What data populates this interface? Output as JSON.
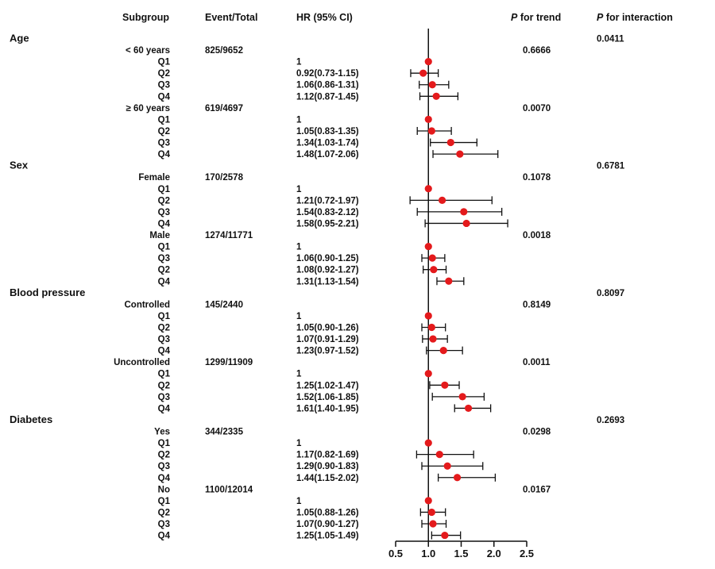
{
  "chart_data": {
    "type": "forest",
    "headers": {
      "subgroup": "Subgroup",
      "event_total": "Event/Total",
      "hr": "HR (95% CI)",
      "p_trend_p": "P",
      "p_trend_rest": " for trend",
      "p_inter_p": "P",
      "p_inter_rest": " for interaction"
    },
    "x_ticks": [
      "0.5",
      "1.0",
      "1.5",
      "2.0",
      "2.5"
    ],
    "xlim": [
      0.5,
      2.5
    ],
    "reference_line": 1.0,
    "marker_color": "#e41a1c",
    "rows": [
      {
        "label": "Age",
        "level": 0,
        "p_interaction": "0.0411"
      },
      {
        "label": "< 60 years",
        "level": 1,
        "event_total": "825/9652",
        "p_trend": "0.6666"
      },
      {
        "label": "Q1",
        "level": 2,
        "hr_text": "1",
        "hr": 1.0,
        "lo": 1.0,
        "hi": 1.0
      },
      {
        "label": "Q2",
        "level": 2,
        "hr_text": "0.92(0.73-1.15)",
        "hr": 0.92,
        "lo": 0.73,
        "hi": 1.15
      },
      {
        "label": "Q3",
        "level": 2,
        "hr_text": "1.06(0.86-1.31)",
        "hr": 1.06,
        "lo": 0.86,
        "hi": 1.31
      },
      {
        "label": "Q4",
        "level": 2,
        "hr_text": "1.12(0.87-1.45)",
        "hr": 1.12,
        "lo": 0.87,
        "hi": 1.45
      },
      {
        "label": "≥ 60 years",
        "level": 1,
        "event_total": "619/4697",
        "p_trend": "0.0070"
      },
      {
        "label": "Q1",
        "level": 2,
        "hr_text": "1",
        "hr": 1.0,
        "lo": 1.0,
        "hi": 1.0
      },
      {
        "label": "Q2",
        "level": 2,
        "hr_text": "1.05(0.83-1.35)",
        "hr": 1.05,
        "lo": 0.83,
        "hi": 1.35
      },
      {
        "label": "Q3",
        "level": 2,
        "hr_text": "1.34(1.03-1.74)",
        "hr": 1.34,
        "lo": 1.03,
        "hi": 1.74
      },
      {
        "label": "Q4",
        "level": 2,
        "hr_text": "1.48(1.07-2.06)",
        "hr": 1.48,
        "lo": 1.07,
        "hi": 2.06
      },
      {
        "label": "Sex",
        "level": 0,
        "p_interaction": "0.6781"
      },
      {
        "label": "Female",
        "level": 1,
        "event_total": "170/2578",
        "p_trend": "0.1078"
      },
      {
        "label": "Q1",
        "level": 2,
        "hr_text": "1",
        "hr": 1.0,
        "lo": 1.0,
        "hi": 1.0
      },
      {
        "label": "Q2",
        "level": 2,
        "hr_text": "1.21(0.72-1.97)",
        "hr": 1.21,
        "lo": 0.72,
        "hi": 1.97
      },
      {
        "label": "Q3",
        "level": 2,
        "hr_text": "1.54(0.83-2.12)",
        "hr": 1.54,
        "lo": 0.83,
        "hi": 2.12
      },
      {
        "label": "Q4",
        "level": 2,
        "hr_text": "1.58(0.95-2.21)",
        "hr": 1.58,
        "lo": 0.95,
        "hi": 2.21
      },
      {
        "label": "Male",
        "level": 1,
        "event_total": "1274/11771",
        "p_trend": "0.0018"
      },
      {
        "label": "Q1",
        "level": 2,
        "hr_text": "1",
        "hr": 1.0,
        "lo": 1.0,
        "hi": 1.0
      },
      {
        "label": "Q3",
        "level": 2,
        "hr_text": "1.06(0.90-1.25)",
        "hr": 1.06,
        "lo": 0.9,
        "hi": 1.25
      },
      {
        "label": "Q2",
        "level": 2,
        "hr_text": "1.08(0.92-1.27)",
        "hr": 1.08,
        "lo": 0.92,
        "hi": 1.27
      },
      {
        "label": "Q4",
        "level": 2,
        "hr_text": "1.31(1.13-1.54)",
        "hr": 1.31,
        "lo": 1.13,
        "hi": 1.54
      },
      {
        "label": "Blood pressure",
        "level": 0,
        "p_interaction": "0.8097"
      },
      {
        "label": "Controlled",
        "level": 1,
        "event_total": "145/2440",
        "p_trend": "0.8149"
      },
      {
        "label": "Q1",
        "level": 2,
        "hr_text": "1",
        "hr": 1.0,
        "lo": 1.0,
        "hi": 1.0
      },
      {
        "label": "Q2",
        "level": 2,
        "hr_text": "1.05(0.90-1.26)",
        "hr": 1.05,
        "lo": 0.9,
        "hi": 1.26
      },
      {
        "label": "Q3",
        "level": 2,
        "hr_text": "1.07(0.91-1.29)",
        "hr": 1.07,
        "lo": 0.91,
        "hi": 1.29
      },
      {
        "label": "Q4",
        "level": 2,
        "hr_text": "1.23(0.97-1.52)",
        "hr": 1.23,
        "lo": 0.97,
        "hi": 1.52
      },
      {
        "label": "Uncontrolled",
        "level": 1,
        "event_total": "1299/11909",
        "p_trend": "0.0011"
      },
      {
        "label": "Q1",
        "level": 2,
        "hr_text": "1",
        "hr": 1.0,
        "lo": 1.0,
        "hi": 1.0
      },
      {
        "label": "Q2",
        "level": 2,
        "hr_text": "1.25(1.02-1.47)",
        "hr": 1.25,
        "lo": 1.02,
        "hi": 1.47
      },
      {
        "label": "Q3",
        "level": 2,
        "hr_text": "1.52(1.06-1.85)",
        "hr": 1.52,
        "lo": 1.06,
        "hi": 1.85
      },
      {
        "label": "Q4",
        "level": 2,
        "hr_text": "1.61(1.40-1.95)",
        "hr": 1.61,
        "lo": 1.4,
        "hi": 1.95
      },
      {
        "label": "Diabetes",
        "level": 0,
        "p_interaction": "0.2693"
      },
      {
        "label": "Yes",
        "level": 1,
        "event_total": "344/2335",
        "p_trend": "0.0298"
      },
      {
        "label": "Q1",
        "level": 2,
        "hr_text": "1",
        "hr": 1.0,
        "lo": 1.0,
        "hi": 1.0
      },
      {
        "label": "Q2",
        "level": 2,
        "hr_text": "1.17(0.82-1.69)",
        "hr": 1.17,
        "lo": 0.82,
        "hi": 1.69
      },
      {
        "label": "Q3",
        "level": 2,
        "hr_text": "1.29(0.90-1.83)",
        "hr": 1.29,
        "lo": 0.9,
        "hi": 1.83
      },
      {
        "label": "Q4",
        "level": 2,
        "hr_text": "1.44(1.15-2.02)",
        "hr": 1.44,
        "lo": 1.15,
        "hi": 2.02
      },
      {
        "label": "No",
        "level": 1,
        "event_total": "1100/12014",
        "p_trend": "0.0167"
      },
      {
        "label": "Q1",
        "level": 2,
        "hr_text": "1",
        "hr": 1.0,
        "lo": 1.0,
        "hi": 1.0
      },
      {
        "label": "Q2",
        "level": 2,
        "hr_text": "1.05(0.88-1.26)",
        "hr": 1.05,
        "lo": 0.88,
        "hi": 1.26
      },
      {
        "label": "Q3",
        "level": 2,
        "hr_text": "1.07(0.90-1.27)",
        "hr": 1.07,
        "lo": 0.9,
        "hi": 1.27
      },
      {
        "label": "Q4",
        "level": 2,
        "hr_text": "1.25(1.05-1.49)",
        "hr": 1.25,
        "lo": 1.05,
        "hi": 1.49
      }
    ]
  }
}
